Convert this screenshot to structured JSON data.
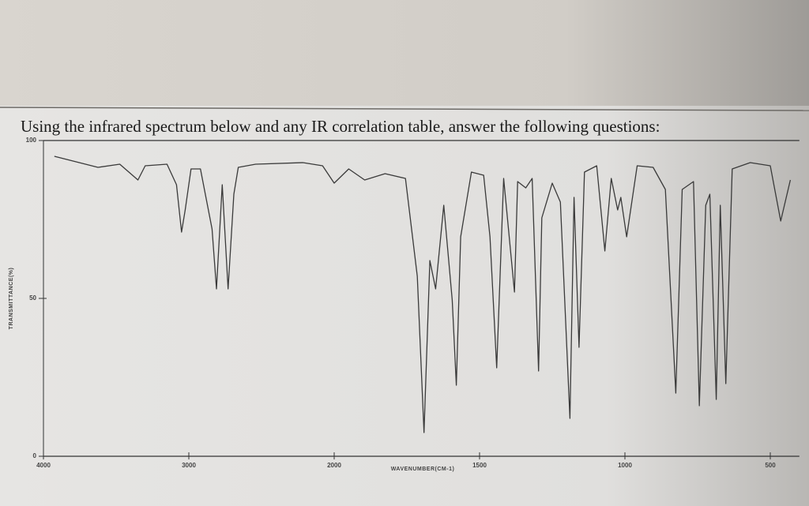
{
  "chart_data": {
    "type": "line",
    "title": "Using the infrared spectrum below and any IR correlation table, answer the following questions:",
    "x_label": "WAVENUMBER(CM-1)",
    "y_label": "TRANSMITTANCE(%)",
    "color": "#3a3a3a",
    "xlim": [
      4000,
      400
    ],
    "xticks": [
      4000,
      3000,
      2000,
      1500,
      1000,
      500
    ],
    "ylim": [
      0,
      100
    ],
    "yticks": [
      0,
      50,
      100
    ],
    "x": [
      3925,
      3625,
      3475,
      3350,
      3300,
      3150,
      3085,
      3050,
      3025,
      2985,
      2920,
      2840,
      2810,
      2770,
      2730,
      2690,
      2660,
      2540,
      2215,
      2080,
      2000,
      1950,
      1895,
      1825,
      1755,
      1714,
      1691,
      1671,
      1651,
      1623,
      1594,
      1580,
      1565,
      1528,
      1486,
      1464,
      1441,
      1417,
      1380,
      1369,
      1341,
      1319,
      1297,
      1286,
      1250,
      1222,
      1189,
      1175,
      1158,
      1139,
      1097,
      1069,
      1047,
      1025,
      1014,
      994,
      958,
      903,
      861,
      825,
      803,
      764,
      744,
      722,
      708,
      686,
      672,
      653,
      631,
      569,
      500,
      464,
      431
    ],
    "values": [
      95,
      91.5,
      92.5,
      87.5,
      92,
      92.5,
      86,
      71,
      78,
      91,
      91,
      72,
      53,
      86,
      53,
      83,
      91.5,
      92.5,
      93,
      92,
      86.5,
      91,
      87.5,
      89.5,
      88,
      57,
      7.5,
      62,
      53,
      79.5,
      49.5,
      22.5,
      69.5,
      90,
      89,
      69.5,
      28,
      88,
      52,
      87,
      85,
      88,
      27,
      75.5,
      86.5,
      80.5,
      12,
      82,
      34.5,
      90,
      92,
      65,
      88,
      78,
      82,
      69.5,
      92,
      91.5,
      84.5,
      20,
      84.5,
      87,
      16,
      79.5,
      83,
      18,
      79.5,
      23,
      91,
      93,
      92,
      74.5,
      87.5
    ]
  }
}
